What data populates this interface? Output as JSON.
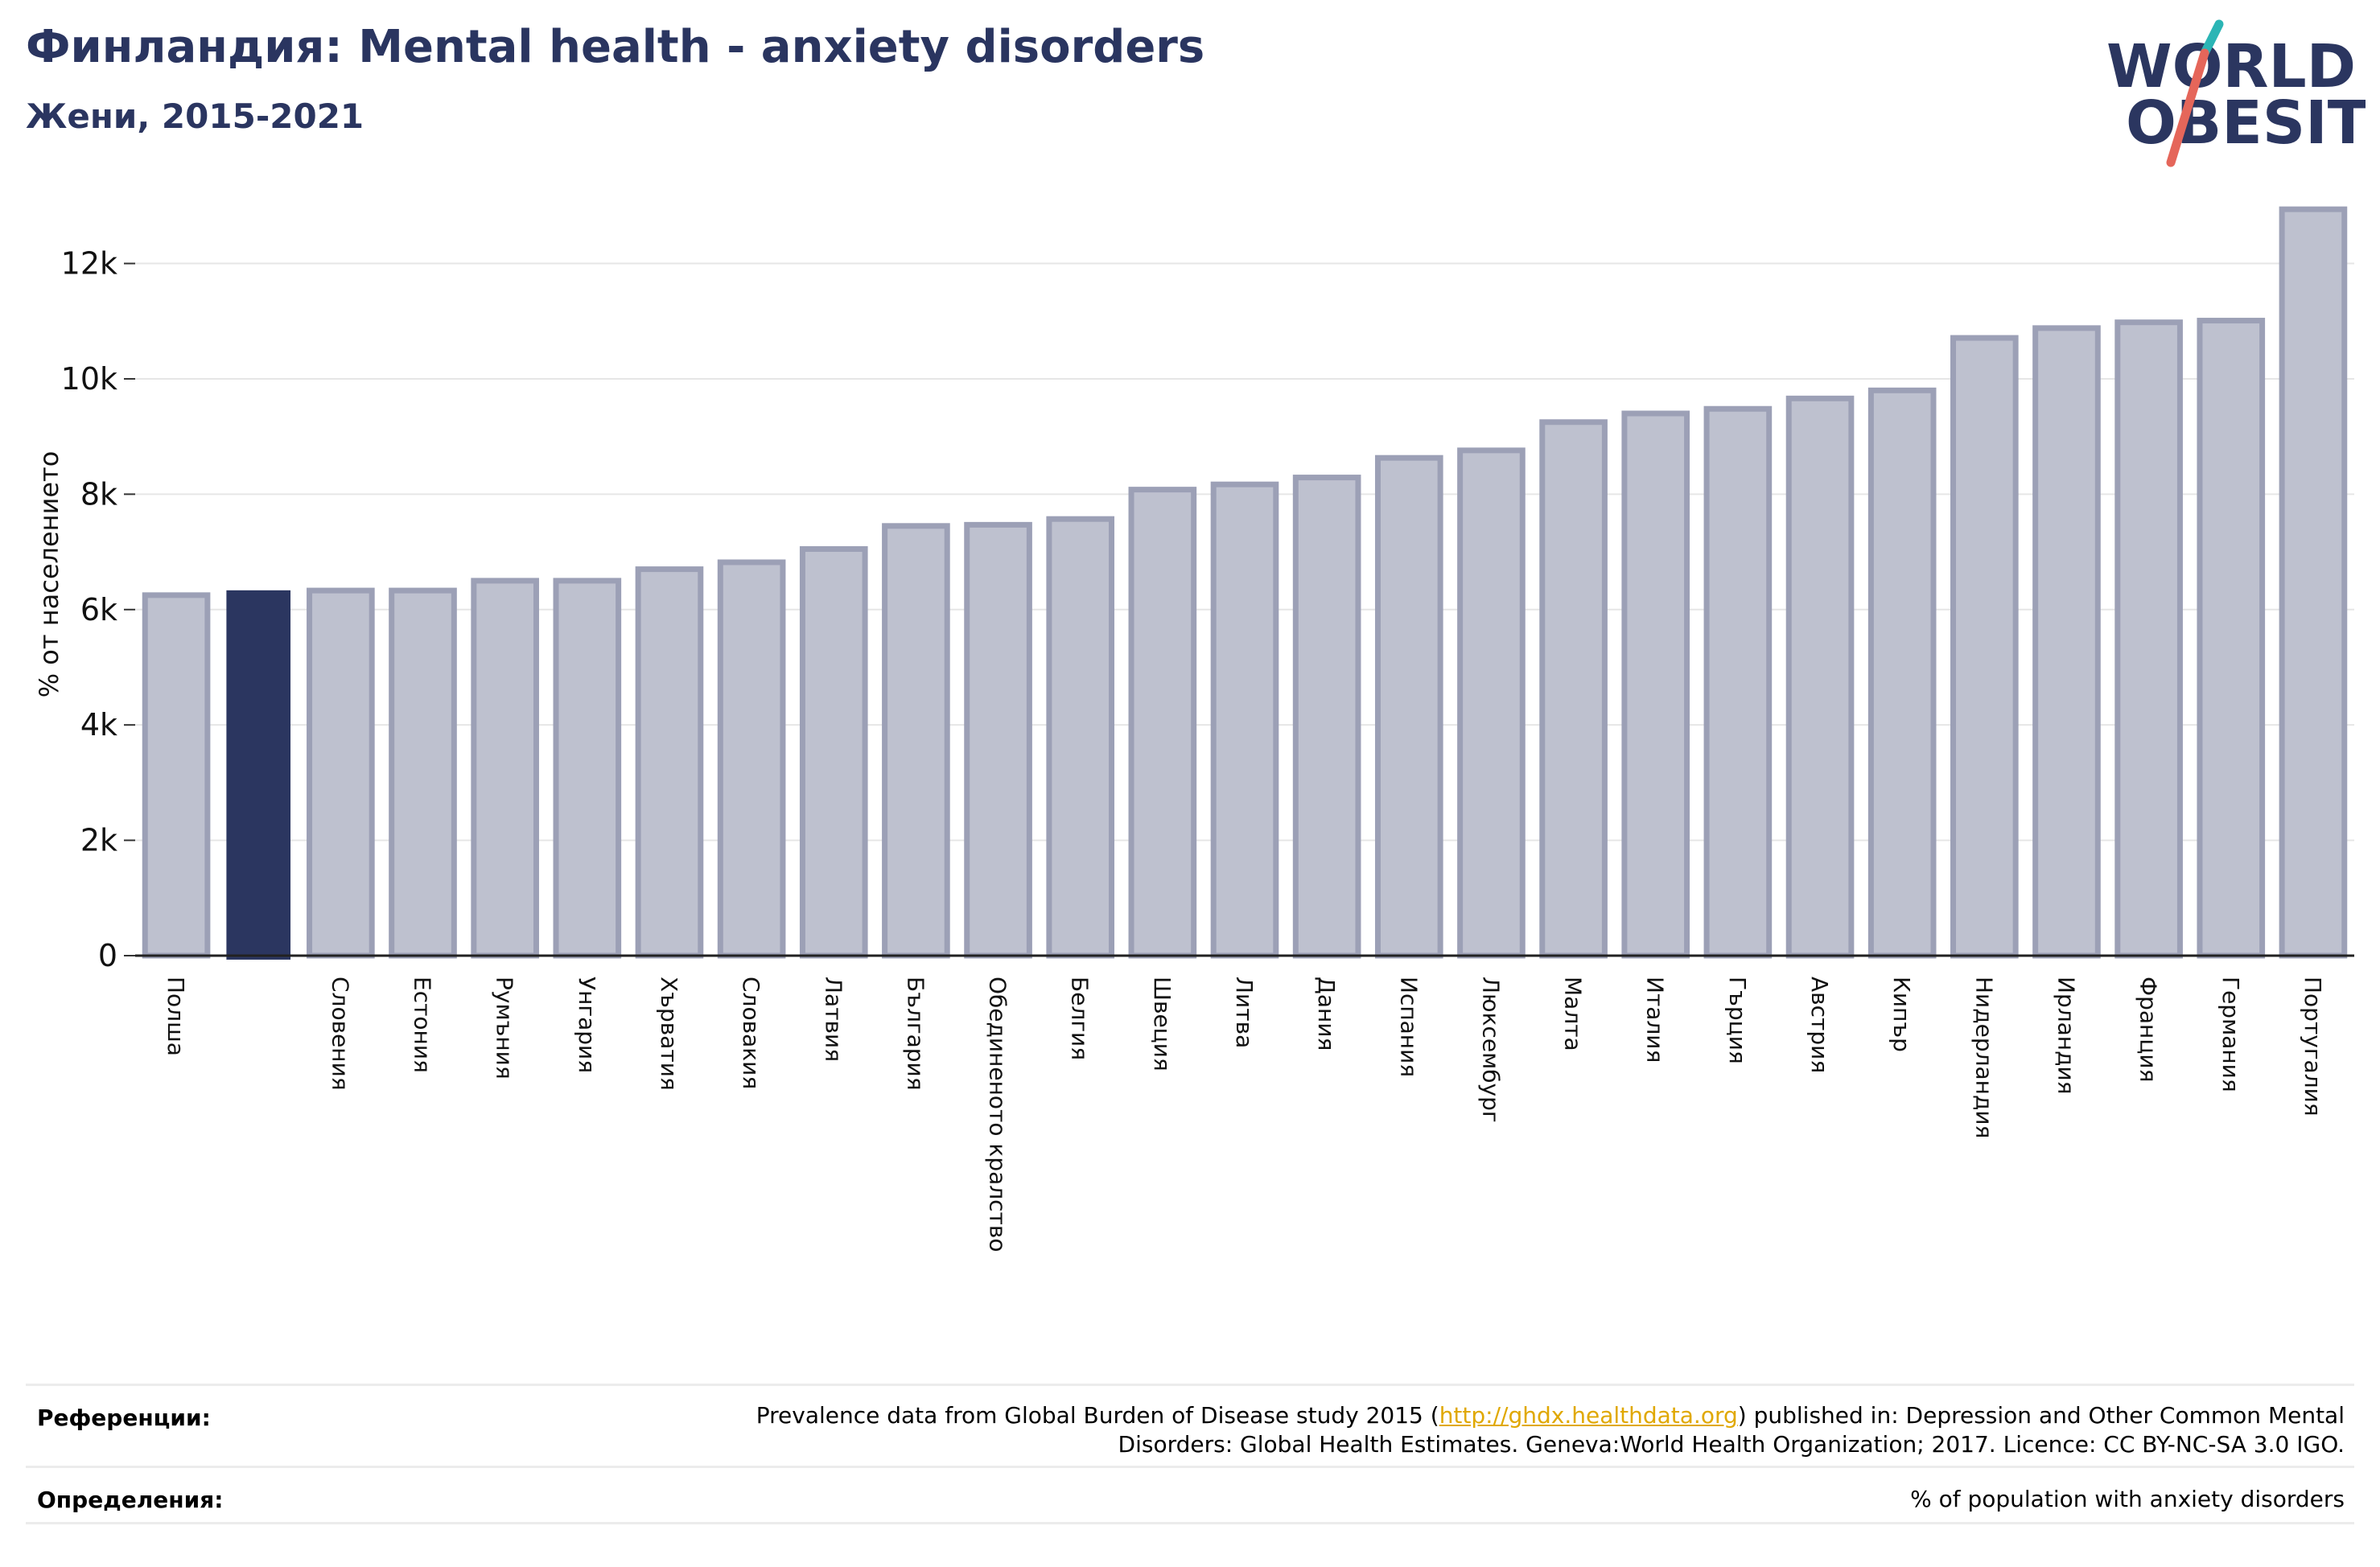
{
  "header": {
    "title": "Финландия: Mental health - anxiety disorders",
    "subtitle": "Жени, 2015-2021"
  },
  "logo": {
    "line1": "WORLD",
    "line2": "OBESITY"
  },
  "colors": {
    "highlight": "#2b3660",
    "bar_fill": "#bec1cf",
    "bar_stroke": "#9ca0b6",
    "grid": "#e6e6e6",
    "title": "#2a3560",
    "logo_text": "#2b3660",
    "logo_teal": "#2bb5b5",
    "logo_coral": "#e5665a",
    "link": "#e0a800"
  },
  "chart_data": {
    "type": "bar",
    "title": "Финландия: Mental health - anxiety disorders",
    "subtitle": "Жени, 2015-2021",
    "ylabel": "% от населението",
    "ylim": [
      0,
      13500
    ],
    "yticks": [
      0,
      2000,
      4000,
      6000,
      8000,
      10000,
      12000
    ],
    "ytick_labels": [
      "0",
      "2k",
      "4k",
      "6k",
      "8k",
      "10k",
      "12k"
    ],
    "grid": true,
    "highlight_index": 1,
    "categories": [
      "Полша",
      "",
      "Словения",
      "Естония",
      "Румъния",
      "Унгария",
      "Хърватия",
      "Словакия",
      "Латвия",
      "България",
      "Обединеното кралство",
      "Белгия",
      "Швеция",
      "Литва",
      "Дания",
      "Испания",
      "Люксембург",
      "Малта",
      "Италия",
      "Гърция",
      "Австрия",
      "Кипър",
      "Нидерландия",
      "Ирландия",
      "Франция",
      "Германия",
      "Португалия"
    ],
    "values": [
      6250,
      6320,
      6330,
      6330,
      6500,
      6500,
      6700,
      6820,
      7050,
      7450,
      7470,
      7570,
      8080,
      8170,
      8290,
      8630,
      8760,
      9250,
      9400,
      9480,
      9660,
      9800,
      10710,
      10880,
      10980,
      11010,
      12940
    ]
  },
  "footer": {
    "references_label": "Референции:",
    "references_line1_before": "Prevalence data from Global Burden of Disease study 2015 (",
    "references_link": "http://ghdx.healthdata.org",
    "references_line1_after": ") published in: Depression and Other Common Mental",
    "references_line2": "Disorders: Global Health Estimates. Geneva:World Health Organization; 2017. Licence: CC BY-NC-SA 3.0 IGO.",
    "definitions_label": "Определения:",
    "definitions_text": "% of population with anxiety disorders"
  }
}
